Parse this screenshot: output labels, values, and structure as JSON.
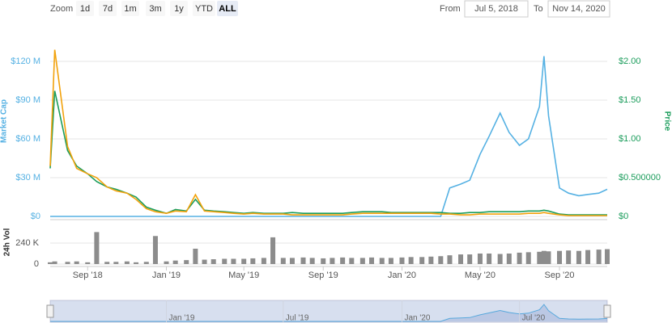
{
  "range_selector": {
    "zoom_label": "Zoom",
    "buttons": [
      "1d",
      "7d",
      "1m",
      "3m",
      "1y",
      "YTD",
      "ALL"
    ],
    "selected": 6,
    "from_label": "From",
    "from": "Jul 5, 2018",
    "to_label": "To",
    "to": "Nov 14, 2020"
  },
  "chart_data": {
    "type": "line",
    "x": [
      "2018-07-05",
      "2018-07-12",
      "2018-08-01",
      "2018-08-15",
      "2018-09-01",
      "2018-09-15",
      "2018-10-01",
      "2018-10-15",
      "2018-11-01",
      "2018-11-15",
      "2018-12-01",
      "2018-12-15",
      "2019-01-01",
      "2019-01-15",
      "2019-02-01",
      "2019-02-15",
      "2019-03-01",
      "2019-03-15",
      "2019-04-01",
      "2019-04-15",
      "2019-05-01",
      "2019-05-15",
      "2019-06-01",
      "2019-06-15",
      "2019-07-01",
      "2019-07-15",
      "2019-08-01",
      "2019-08-15",
      "2019-09-01",
      "2019-09-15",
      "2019-10-01",
      "2019-10-15",
      "2019-11-01",
      "2019-11-15",
      "2019-12-01",
      "2019-12-15",
      "2020-01-01",
      "2020-01-15",
      "2020-02-01",
      "2020-02-15",
      "2020-03-01",
      "2020-03-15",
      "2020-04-01",
      "2020-04-15",
      "2020-05-01",
      "2020-05-15",
      "2020-06-01",
      "2020-06-15",
      "2020-07-01",
      "2020-07-15",
      "2020-08-01",
      "2020-08-08",
      "2020-08-15",
      "2020-09-01",
      "2020-09-15",
      "2020-10-01",
      "2020-10-15",
      "2020-11-01",
      "2020-11-14"
    ],
    "xlim": [
      "2018-07-05",
      "2020-11-14"
    ],
    "xticks": [
      {
        "value": "2018-09-01",
        "label": "Sep '18"
      },
      {
        "value": "2019-01-01",
        "label": "Jan '19"
      },
      {
        "value": "2019-05-01",
        "label": "May '19"
      },
      {
        "value": "2019-09-01",
        "label": "Sep '19"
      },
      {
        "value": "2020-01-01",
        "label": "Jan '20"
      },
      {
        "value": "2020-05-01",
        "label": "May '20"
      },
      {
        "value": "2020-09-01",
        "label": "Sep '20"
      }
    ],
    "yaxis_title": "Market Cap",
    "y2axis_title": "Price",
    "ylim": [
      0,
      130
    ],
    "yticks": [
      {
        "value": 0,
        "label": "$0"
      },
      {
        "value": 30,
        "label": "$30 M"
      },
      {
        "value": 60,
        "label": "$60 M"
      },
      {
        "value": 90,
        "label": "$90 M"
      },
      {
        "value": 120,
        "label": "$120 M"
      }
    ],
    "y2lim": [
      0,
      2.1667
    ],
    "y2ticks": [
      {
        "value": 0,
        "label": "$0"
      },
      {
        "value": 0.5,
        "label": "$0.500000"
      },
      {
        "value": 1,
        "label": "$1.00"
      },
      {
        "value": 1.5,
        "label": "$1.50"
      },
      {
        "value": 2,
        "label": "$2.00"
      }
    ],
    "grid": true,
    "series": [
      {
        "color": "#55b1e3",
        "values": [
          0,
          0,
          0,
          0,
          0,
          0,
          0,
          0,
          0,
          0,
          0,
          0,
          0,
          0,
          0,
          0,
          0,
          0,
          0,
          0,
          0,
          0,
          0,
          0,
          0,
          0,
          0,
          0,
          0,
          0,
          0,
          0,
          0,
          0,
          0,
          0,
          0,
          0,
          0,
          0,
          0,
          22,
          25,
          28,
          48,
          62,
          80,
          65,
          55,
          60,
          85,
          124,
          78,
          22,
          18,
          16,
          17,
          18,
          21
        ]
      },
      {
        "color": "#1c9d5c",
        "axis": "y2",
        "values": [
          0.62,
          1.62,
          0.85,
          0.65,
          0.55,
          0.45,
          0.38,
          0.35,
          0.3,
          0.25,
          0.12,
          0.08,
          0.04,
          0.09,
          0.07,
          0.22,
          0.08,
          0.07,
          0.06,
          0.05,
          0.04,
          0.05,
          0.04,
          0.04,
          0.04,
          0.05,
          0.04,
          0.04,
          0.04,
          0.04,
          0.04,
          0.05,
          0.06,
          0.06,
          0.06,
          0.05,
          0.05,
          0.05,
          0.05,
          0.05,
          0.05,
          0.04,
          0.04,
          0.05,
          0.05,
          0.06,
          0.06,
          0.06,
          0.06,
          0.07,
          0.07,
          0.08,
          0.07,
          0.03,
          0.02,
          0.02,
          0.02,
          0.02,
          0.02
        ]
      },
      {
        "color": "#f2a20c",
        "axis": "y2",
        "values": [
          0.65,
          2.15,
          0.9,
          0.62,
          0.55,
          0.5,
          0.38,
          0.33,
          0.3,
          0.22,
          0.1,
          0.06,
          0.04,
          0.07,
          0.06,
          0.28,
          0.07,
          0.06,
          0.05,
          0.04,
          0.03,
          0.04,
          0.03,
          0.03,
          0.03,
          0.02,
          0.02,
          0.02,
          0.02,
          0.02,
          0.02,
          0.03,
          0.04,
          0.04,
          0.04,
          0.04,
          0.04,
          0.04,
          0.04,
          0.04,
          0.03,
          0.03,
          0.02,
          0.02,
          0.03,
          0.03,
          0.03,
          0.03,
          0.03,
          0.04,
          0.04,
          0.05,
          0.04,
          0.02,
          0.01,
          0.01,
          0.01,
          0.01,
          0.01
        ]
      }
    ],
    "volume": {
      "title": "24h Vol",
      "color": "#8c8c8c",
      "ylim": [
        0,
        470
      ],
      "yticks": [
        0,
        {
          "value": 240,
          "label": "240 K"
        }
      ],
      "values": [
        20,
        30,
        25,
        30,
        20,
        365,
        25,
        25,
        30,
        20,
        25,
        320,
        30,
        40,
        45,
        175,
        50,
        55,
        60,
        60,
        60,
        65,
        70,
        305,
        70,
        70,
        75,
        70,
        65,
        70,
        75,
        70,
        70,
        75,
        70,
        70,
        75,
        80,
        80,
        85,
        90,
        100,
        110,
        110,
        120,
        120,
        115,
        120,
        130,
        135,
        140,
        150,
        145,
        150,
        155,
        150,
        160,
        165,
        170
      ]
    },
    "navigator": {
      "xticks": [
        {
          "value": "2019-01-01",
          "label": "Jan '19"
        },
        {
          "value": "2019-07-01",
          "label": "Jul '19"
        },
        {
          "value": "2020-01-01",
          "label": "Jan '20"
        },
        {
          "value": "2020-07-01",
          "label": "Jul '20"
        }
      ]
    }
  }
}
